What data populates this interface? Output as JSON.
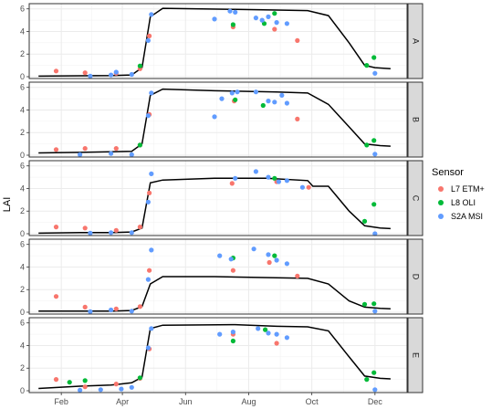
{
  "chart_data": {
    "type": "scatter",
    "ylabel": "LAI",
    "xlabel": "",
    "legend_title": "Sensor",
    "legend_position": "right",
    "x_ticks": [
      "Feb",
      "Apr",
      "Jun",
      "Aug",
      "Oct",
      "Dec"
    ],
    "x_tick_doy": [
      32,
      91,
      152,
      213,
      274,
      335
    ],
    "xlim_doy": [
      1,
      366
    ],
    "ylim": [
      0,
      6.3
    ],
    "y_ticks": [
      0,
      2,
      4,
      6
    ],
    "sensors": [
      {
        "name": "L7 ETM+",
        "color": "#F8766D"
      },
      {
        "name": "L8 OLI",
        "color": "#00BA38"
      },
      {
        "name": "S2A MSI",
        "color": "#619CFF"
      }
    ],
    "panels": [
      {
        "label": "A",
        "curve": [
          [
            10,
            0.05
          ],
          [
            50,
            0.08
          ],
          [
            80,
            0.1
          ],
          [
            100,
            0.15
          ],
          [
            110,
            0.8
          ],
          [
            118,
            5.3
          ],
          [
            130,
            6.05
          ],
          [
            200,
            5.95
          ],
          [
            240,
            5.9
          ],
          [
            270,
            5.85
          ],
          [
            290,
            5.4
          ],
          [
            310,
            3.0
          ],
          [
            325,
            1.0
          ],
          [
            335,
            0.8
          ],
          [
            350,
            0.7
          ]
        ],
        "points": {
          "L7 ETM+": [
            [
              27,
              0.5
            ],
            [
              55,
              0.35
            ],
            [
              85,
              0.3
            ],
            [
              108,
              0.7
            ],
            [
              117,
              3.6
            ],
            [
              198,
              4.4
            ],
            [
              238,
              4.2
            ],
            [
              260,
              3.2
            ]
          ],
          "L8 OLI": [
            [
              108,
              0.95
            ],
            [
              198,
              4.6
            ],
            [
              228,
              4.7
            ],
            [
              238,
              5.6
            ],
            [
              327,
              1.0
            ],
            [
              334,
              1.7
            ]
          ],
          "S2A MSI": [
            [
              60,
              0.05
            ],
            [
              80,
              0.15
            ],
            [
              85,
              0.4
            ],
            [
              100,
              0.2
            ],
            [
              116,
              3.2
            ],
            [
              119,
              5.5
            ],
            [
              180,
              5.1
            ],
            [
              195,
              5.8
            ],
            [
              200,
              5.7
            ],
            [
              220,
              5.2
            ],
            [
              226,
              5.0
            ],
            [
              232,
              5.3
            ],
            [
              240,
              4.8
            ],
            [
              250,
              4.7
            ],
            [
              335,
              0.3
            ]
          ]
        }
      },
      {
        "label": "B",
        "curve": [
          [
            10,
            0.2
          ],
          [
            50,
            0.25
          ],
          [
            80,
            0.3
          ],
          [
            100,
            0.35
          ],
          [
            110,
            1.0
          ],
          [
            118,
            5.3
          ],
          [
            130,
            5.85
          ],
          [
            180,
            5.7
          ],
          [
            240,
            5.6
          ],
          [
            270,
            5.5
          ],
          [
            290,
            4.5
          ],
          [
            310,
            2.5
          ],
          [
            325,
            1.0
          ],
          [
            340,
            0.85
          ],
          [
            350,
            0.8
          ]
        ],
        "points": {
          "L7 ETM+": [
            [
              27,
              0.5
            ],
            [
              55,
              0.6
            ],
            [
              85,
              0.6
            ],
            [
              108,
              0.9
            ],
            [
              117,
              3.6
            ],
            [
              199,
              4.8
            ],
            [
              260,
              3.2
            ]
          ],
          "L8 OLI": [
            [
              108,
              0.9
            ],
            [
              200,
              4.9
            ],
            [
              227,
              4.4
            ],
            [
              327,
              0.9
            ],
            [
              334,
              1.3
            ]
          ],
          "S2A MSI": [
            [
              50,
              0.05
            ],
            [
              80,
              0.15
            ],
            [
              100,
              0.05
            ],
            [
              116,
              3.5
            ],
            [
              119,
              5.5
            ],
            [
              180,
              3.4
            ],
            [
              187,
              5.0
            ],
            [
              197,
              5.5
            ],
            [
              202,
              5.6
            ],
            [
              220,
              5.6
            ],
            [
              232,
              4.8
            ],
            [
              238,
              4.7
            ],
            [
              245,
              5.3
            ],
            [
              250,
              4.6
            ],
            [
              335,
              0.1
            ]
          ]
        }
      },
      {
        "label": "C",
        "curve": [
          [
            10,
            0.05
          ],
          [
            50,
            0.1
          ],
          [
            80,
            0.1
          ],
          [
            100,
            0.15
          ],
          [
            110,
            0.5
          ],
          [
            118,
            4.5
          ],
          [
            130,
            4.75
          ],
          [
            180,
            4.9
          ],
          [
            230,
            4.9
          ],
          [
            270,
            4.7
          ],
          [
            275,
            4.2
          ],
          [
            290,
            4.2
          ],
          [
            310,
            2.0
          ],
          [
            325,
            0.7
          ],
          [
            340,
            0.5
          ],
          [
            350,
            0.45
          ]
        ],
        "points": {
          "L7 ETM+": [
            [
              27,
              0.6
            ],
            [
              55,
              0.5
            ],
            [
              85,
              0.3
            ],
            [
              108,
              0.6
            ],
            [
              117,
              3.6
            ],
            [
              197,
              4.45
            ],
            [
              240,
              4.6
            ],
            [
              271,
              4.1
            ]
          ],
          "L8 OLI": [
            [
              238,
              4.9
            ],
            [
              325,
              1.1
            ],
            [
              334,
              2.6
            ]
          ],
          "S2A MSI": [
            [
              60,
              0.05
            ],
            [
              80,
              0.1
            ],
            [
              100,
              0.1
            ],
            [
              116,
              2.8
            ],
            [
              119,
              5.3
            ],
            [
              200,
              4.9
            ],
            [
              220,
              5.5
            ],
            [
              232,
              5.0
            ],
            [
              242,
              4.6
            ],
            [
              250,
              4.7
            ],
            [
              265,
              4.1
            ],
            [
              335,
              0.0
            ]
          ]
        }
      },
      {
        "label": "D",
        "curve": [
          [
            10,
            0.1
          ],
          [
            50,
            0.1
          ],
          [
            80,
            0.1
          ],
          [
            100,
            0.15
          ],
          [
            110,
            0.5
          ],
          [
            118,
            2.5
          ],
          [
            130,
            3.15
          ],
          [
            180,
            3.15
          ],
          [
            240,
            3.05
          ],
          [
            270,
            3.0
          ],
          [
            290,
            2.5
          ],
          [
            310,
            1.0
          ],
          [
            325,
            0.45
          ],
          [
            340,
            0.35
          ],
          [
            350,
            0.3
          ]
        ],
        "points": {
          "L7 ETM+": [
            [
              27,
              1.4
            ],
            [
              55,
              0.45
            ],
            [
              85,
              0.3
            ],
            [
              108,
              0.5
            ],
            [
              117,
              3.7
            ],
            [
              198,
              3.7
            ],
            [
              233,
              4.4
            ],
            [
              260,
              3.2
            ]
          ],
          "L8 OLI": [
            [
              198,
              4.8
            ],
            [
              238,
              5.0
            ],
            [
              325,
              0.7
            ],
            [
              334,
              0.75
            ]
          ],
          "S2A MSI": [
            [
              60,
              0.05
            ],
            [
              80,
              0.2
            ],
            [
              100,
              0.1
            ],
            [
              116,
              2.9
            ],
            [
              119,
              5.5
            ],
            [
              185,
              5.0
            ],
            [
              196,
              4.7
            ],
            [
              218,
              5.6
            ],
            [
              232,
              5.1
            ],
            [
              240,
              4.6
            ],
            [
              250,
              4.3
            ],
            [
              335,
              0.1
            ]
          ]
        }
      },
      {
        "label": "E",
        "curve": [
          [
            10,
            0.2
          ],
          [
            50,
            0.4
          ],
          [
            80,
            0.5
          ],
          [
            100,
            0.7
          ],
          [
            110,
            1.2
          ],
          [
            118,
            5.5
          ],
          [
            130,
            5.8
          ],
          [
            200,
            5.85
          ],
          [
            240,
            5.7
          ],
          [
            270,
            5.65
          ],
          [
            290,
            5.3
          ],
          [
            310,
            3.0
          ],
          [
            325,
            1.3
          ],
          [
            340,
            1.1
          ],
          [
            350,
            1.05
          ]
        ],
        "points": {
          "L7 ETM+": [
            [
              27,
              1.0
            ],
            [
              55,
              0.35
            ],
            [
              85,
              0.6
            ],
            [
              108,
              1.1
            ],
            [
              117,
              3.7
            ],
            [
              198,
              5.0
            ],
            [
              240,
              4.2
            ]
          ],
          "L8 OLI": [
            [
              40,
              0.75
            ],
            [
              55,
              0.9
            ],
            [
              108,
              1.15
            ],
            [
              198,
              4.4
            ],
            [
              229,
              5.4
            ],
            [
              327,
              1.0
            ],
            [
              334,
              1.6
            ]
          ],
          "S2A MSI": [
            [
              50,
              0.05
            ],
            [
              70,
              0.1
            ],
            [
              90,
              0.15
            ],
            [
              100,
              0.3
            ],
            [
              116,
              3.8
            ],
            [
              119,
              5.5
            ],
            [
              185,
              5.0
            ],
            [
              198,
              5.2
            ],
            [
              222,
              5.5
            ],
            [
              232,
              5.1
            ],
            [
              240,
              5.0
            ],
            [
              250,
              4.7
            ],
            [
              335,
              0.1
            ]
          ]
        }
      }
    ]
  }
}
